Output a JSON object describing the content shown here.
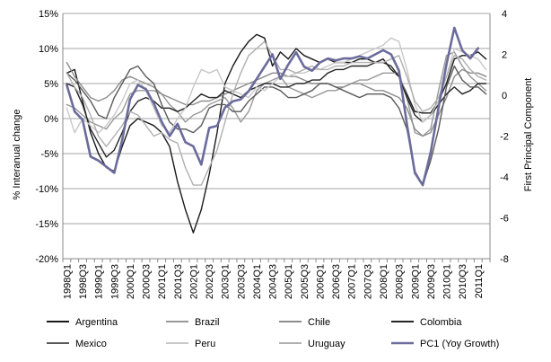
{
  "chart_data": {
    "type": "line",
    "ylabel_left": "% Interanual change",
    "ylabel_right": "First Principal Component",
    "ylim_left": [
      -20,
      15
    ],
    "yticks_left": [
      "15%",
      "10%",
      "5%",
      "0%",
      "-5%",
      "-10%",
      "-15%",
      "-20%"
    ],
    "ylim_right": [
      -8,
      4
    ],
    "yticks_right": [
      "4",
      "2",
      "0",
      "-2",
      "-4",
      "-6",
      "-8"
    ],
    "grid": true,
    "legend_position": "bottom",
    "x_tick_labels": [
      "1998Q1",
      "1998Q3",
      "1999Q1",
      "1999Q3",
      "2000Q1",
      "2000Q3",
      "2001Q1",
      "2001Q3",
      "2002Q1",
      "2002Q3",
      "2003Q1",
      "2003Q3",
      "2004Q1",
      "2004Q3",
      "2005Q1",
      "2005Q3",
      "2006Q1",
      "2006Q3",
      "2007Q1",
      "2007Q3",
      "2008Q1",
      "2008Q3",
      "2009Q1",
      "2009Q3",
      "2010Q1",
      "2010Q3",
      "2011Q1"
    ],
    "x": [
      "1998Q1",
      "1998Q2",
      "1998Q3",
      "1998Q4",
      "1999Q1",
      "1999Q2",
      "1999Q3",
      "1999Q4",
      "2000Q1",
      "2000Q2",
      "2000Q3",
      "2000Q4",
      "2001Q1",
      "2001Q2",
      "2001Q3",
      "2001Q4",
      "2002Q1",
      "2002Q2",
      "2002Q3",
      "2002Q4",
      "2003Q1",
      "2003Q2",
      "2003Q3",
      "2003Q4",
      "2004Q1",
      "2004Q2",
      "2004Q3",
      "2004Q4",
      "2005Q1",
      "2005Q2",
      "2005Q3",
      "2005Q4",
      "2006Q1",
      "2006Q2",
      "2006Q3",
      "2006Q4",
      "2007Q1",
      "2007Q2",
      "2007Q3",
      "2007Q4",
      "2008Q1",
      "2008Q2",
      "2008Q3",
      "2008Q4",
      "2009Q1",
      "2009Q2",
      "2009Q3",
      "2009Q4",
      "2010Q1",
      "2010Q2",
      "2010Q3",
      "2010Q4",
      "2011Q1",
      "2011Q2"
    ],
    "series": [
      {
        "name": "Argentina",
        "color": "#1a1a1a",
        "width": 1.4,
        "axis": "left",
        "values": [
          6.5,
          7.0,
          2.5,
          -2.0,
          -5.0,
          -7.0,
          -7.5,
          -4.0,
          -1.0,
          0.0,
          -0.5,
          -1.0,
          -2.0,
          -4.0,
          -9.0,
          -13.0,
          -16.3,
          -13.0,
          -8.0,
          -2.0,
          5.0,
          7.5,
          9.5,
          11.0,
          12.0,
          11.5,
          7.5,
          9.5,
          8.5,
          10.0,
          9.0,
          8.5,
          8.0,
          8.5,
          8.0,
          8.0,
          8.0,
          8.5,
          8.5,
          8.0,
          8.5,
          7.0,
          6.0,
          3.5,
          1.0,
          0.8,
          0.8,
          2.5,
          5.0,
          8.5,
          9.0,
          9.0,
          9.5,
          8.5
        ]
      },
      {
        "name": "Brazil",
        "color": "#999999",
        "width": 1.4,
        "axis": "left",
        "values": [
          2.0,
          1.5,
          0.5,
          -0.5,
          -1.0,
          -1.5,
          0.0,
          1.0,
          3.5,
          4.0,
          4.0,
          4.0,
          3.5,
          2.0,
          1.0,
          -0.5,
          0.5,
          1.0,
          2.0,
          2.5,
          3.0,
          1.5,
          -0.5,
          1.0,
          4.0,
          5.0,
          5.5,
          6.0,
          4.5,
          4.0,
          3.5,
          3.0,
          3.5,
          4.0,
          4.0,
          4.5,
          5.0,
          5.5,
          5.5,
          6.0,
          6.5,
          6.5,
          6.5,
          3.0,
          -2.0,
          -2.5,
          -1.5,
          4.0,
          9.0,
          9.5,
          7.5,
          6.0,
          5.0,
          4.0
        ]
      },
      {
        "name": "Chile",
        "color": "#8c8c8c",
        "width": 1.4,
        "axis": "left",
        "values": [
          8.0,
          6.0,
          4.5,
          3.0,
          2.5,
          3.0,
          4.0,
          5.5,
          6.0,
          5.5,
          5.0,
          4.5,
          3.5,
          3.0,
          2.5,
          2.0,
          2.0,
          2.5,
          2.5,
          3.0,
          3.5,
          4.0,
          4.5,
          5.0,
          5.5,
          6.0,
          6.5,
          6.5,
          6.0,
          6.0,
          5.5,
          5.0,
          5.0,
          5.0,
          4.5,
          4.5,
          5.0,
          5.0,
          4.5,
          4.0,
          4.0,
          3.5,
          3.0,
          1.5,
          -1.5,
          -2.5,
          -2.0,
          0.5,
          3.0,
          6.0,
          7.0,
          6.5,
          6.5,
          6.0
        ]
      },
      {
        "name": "Colombia",
        "color": "#262626",
        "width": 1.4,
        "axis": "left",
        "values": [
          5.0,
          4.5,
          2.0,
          -1.5,
          -3.5,
          -5.5,
          -4.5,
          -2.0,
          1.0,
          2.5,
          3.0,
          2.5,
          1.5,
          1.5,
          1.0,
          1.5,
          2.5,
          3.5,
          3.0,
          3.0,
          4.0,
          3.5,
          3.0,
          4.0,
          4.5,
          5.0,
          5.0,
          4.5,
          4.5,
          5.0,
          5.0,
          5.5,
          5.5,
          6.5,
          7.0,
          7.0,
          7.5,
          7.5,
          7.5,
          8.0,
          8.0,
          7.5,
          6.0,
          3.0,
          0.5,
          -0.5,
          0.5,
          2.0,
          3.5,
          4.5,
          3.5,
          4.0,
          5.0,
          5.0
        ]
      },
      {
        "name": "Mexico",
        "color": "#5a5a5a",
        "width": 1.4,
        "axis": "left",
        "values": [
          6.5,
          5.5,
          4.0,
          2.5,
          0.5,
          0.0,
          3.0,
          5.0,
          7.0,
          7.5,
          6.0,
          5.0,
          2.0,
          -0.5,
          -1.5,
          -1.5,
          -2.0,
          -1.0,
          1.5,
          2.0,
          2.0,
          1.0,
          1.0,
          2.5,
          3.5,
          4.5,
          4.5,
          4.0,
          3.0,
          3.0,
          3.5,
          4.0,
          5.0,
          5.0,
          4.5,
          4.0,
          3.5,
          3.0,
          3.5,
          3.5,
          3.5,
          3.0,
          1.5,
          -1.5,
          -7.5,
          -9.5,
          -6.0,
          -1.5,
          4.5,
          7.5,
          5.5,
          4.5,
          4.5,
          3.5
        ]
      },
      {
        "name": "Peru",
        "color": "#c8c8c8",
        "width": 1.4,
        "axis": "left",
        "values": [
          1.5,
          -2.0,
          0.0,
          -1.0,
          -2.0,
          -1.0,
          0.5,
          2.5,
          5.0,
          5.5,
          4.0,
          1.5,
          -1.0,
          -2.0,
          0.0,
          1.5,
          4.5,
          7.0,
          6.5,
          7.0,
          4.5,
          4.0,
          3.5,
          3.0,
          4.5,
          4.0,
          5.0,
          6.0,
          6.0,
          6.5,
          6.5,
          7.0,
          7.0,
          7.5,
          8.0,
          8.0,
          8.5,
          9.0,
          9.5,
          10.0,
          10.5,
          11.5,
          11.0,
          7.0,
          2.0,
          -0.5,
          0.5,
          2.5,
          6.0,
          10.0,
          9.5,
          9.0,
          8.5,
          7.0
        ]
      },
      {
        "name": "Uruguay",
        "color": "#b0b0b0",
        "width": 1.4,
        "axis": "left",
        "values": [
          6.5,
          4.5,
          3.0,
          0.5,
          -2.5,
          -4.0,
          -2.5,
          -1.0,
          1.0,
          0.5,
          -1.0,
          -2.5,
          -2.0,
          -3.0,
          -3.5,
          -7.0,
          -9.5,
          -9.5,
          -7.0,
          -4.5,
          -0.5,
          3.5,
          6.5,
          9.0,
          10.0,
          11.0,
          9.0,
          7.0,
          7.0,
          6.5,
          7.0,
          7.5,
          7.0,
          7.0,
          7.5,
          7.5,
          8.0,
          8.0,
          8.0,
          8.0,
          8.0,
          8.5,
          9.0,
          6.0,
          2.5,
          1.0,
          1.5,
          3.0,
          6.0,
          9.0,
          8.5,
          7.0,
          6.0,
          5.5
        ]
      },
      {
        "name": "PC1 (Yoy Growth)",
        "color": "#6b6b9c",
        "width": 2.6,
        "axis": "right",
        "values": [
          0.5,
          -0.8,
          -1.2,
          -3.0,
          -3.2,
          -3.5,
          -3.8,
          -2.2,
          -0.2,
          0.5,
          0.3,
          -0.4,
          -1.3,
          -2.0,
          -1.4,
          -2.3,
          -2.5,
          -3.4,
          -1.6,
          -1.5,
          -0.6,
          -0.3,
          -0.2,
          0.2,
          0.8,
          1.4,
          2.0,
          0.8,
          1.5,
          2.1,
          1.4,
          1.2,
          1.6,
          1.8,
          1.7,
          1.8,
          1.8,
          1.9,
          1.8,
          2.0,
          2.2,
          2.0,
          1.2,
          -1.4,
          -3.8,
          -4.4,
          -2.8,
          -0.6,
          1.5,
          3.3,
          2.2,
          1.8,
          2.3,
          null
        ]
      }
    ]
  }
}
